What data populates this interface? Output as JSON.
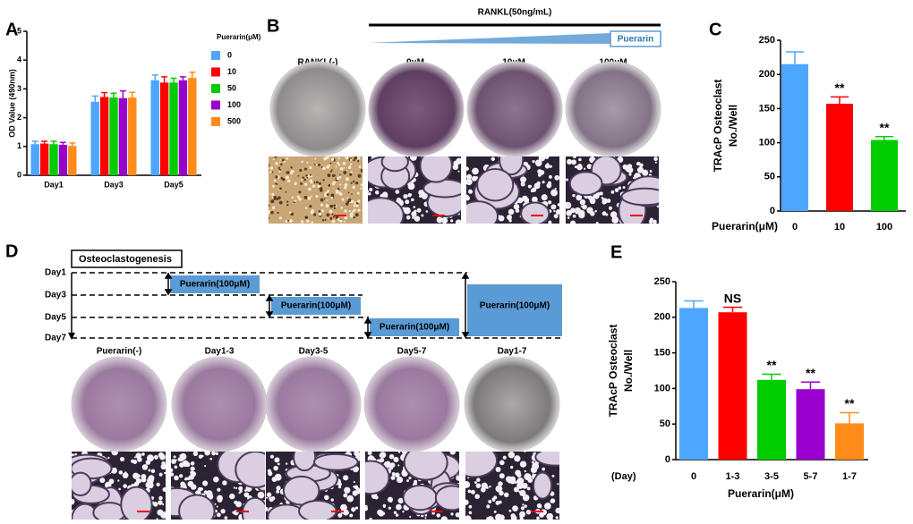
{
  "chart_data": [
    {
      "type": "bar",
      "label": "A",
      "ylabel": "OD Value (490nm)",
      "categories": [
        "Day1",
        "Day3",
        "Day5"
      ],
      "legend_title": "Puerarin(μM)",
      "series": [
        {
          "name": "0",
          "color": "#4da6ff",
          "values": [
            1.08,
            2.55,
            3.3
          ],
          "errors": [
            0.1,
            0.2,
            0.18
          ]
        },
        {
          "name": "10",
          "color": "#ff0000",
          "values": [
            1.1,
            2.72,
            3.22
          ],
          "errors": [
            0.08,
            0.15,
            0.2
          ]
        },
        {
          "name": "50",
          "color": "#00cc00",
          "values": [
            1.08,
            2.7,
            3.22
          ],
          "errors": [
            0.1,
            0.15,
            0.15
          ]
        },
        {
          "name": "100",
          "color": "#9900cc",
          "values": [
            1.06,
            2.68,
            3.3
          ],
          "errors": [
            0.08,
            0.25,
            0.12
          ]
        },
        {
          "name": "500",
          "color": "#ff8c1a",
          "values": [
            1.02,
            2.7,
            3.38
          ],
          "errors": [
            0.1,
            0.18,
            0.2
          ]
        }
      ],
      "ylim": [
        0,
        5
      ],
      "yticks": [
        0,
        1,
        2,
        3,
        4,
        5
      ]
    },
    {
      "type": "bar",
      "label": "C",
      "ylabel": [
        "TRAcP Osteoclast",
        "No./Well"
      ],
      "xlabel": "Puerarin(μM)",
      "categories": [
        "0",
        "10",
        "100"
      ],
      "values": [
        215,
        157,
        104
      ],
      "errors": [
        18,
        10,
        5
      ],
      "colors": [
        "#4da6ff",
        "#ff0000",
        "#00cc00"
      ],
      "annotations": [
        null,
        "**",
        "**"
      ],
      "ylim": [
        0,
        250
      ],
      "yticks": [
        0,
        50,
        100,
        150,
        200,
        250
      ]
    },
    {
      "type": "bar",
      "label": "E",
      "ylabel": [
        "TRAcP Osteoclast",
        "No./Well"
      ],
      "xlabel": "Puerarin(μM)",
      "category_axis_label": "(Day)",
      "categories": [
        "0",
        "1-3",
        "3-5",
        "5-7",
        "1-7"
      ],
      "values": [
        213,
        207,
        112,
        99,
        51
      ],
      "errors": [
        10,
        7,
        8,
        10,
        15
      ],
      "colors": [
        "#4da6ff",
        "#ff0000",
        "#00cc00",
        "#9900cc",
        "#ff8c1a"
      ],
      "annotations": [
        null,
        "NS",
        "**",
        "**",
        "**"
      ],
      "ylim": [
        0,
        250
      ],
      "yticks": [
        0,
        50,
        100,
        150,
        200,
        250
      ]
    }
  ],
  "panels": {
    "b": {
      "label": "B",
      "control": "RANKL(-)",
      "treatment": "RANKL(50ng/mL)",
      "drug": "Puerarin",
      "doses": [
        "0μM",
        "10μM",
        "100μM"
      ]
    },
    "d": {
      "label": "D",
      "title": "Osteoclastogenesis",
      "days": [
        "Day1",
        "Day3",
        "Day5",
        "Day7"
      ],
      "treatment_boxes": [
        "Puerarin(100μM)",
        "Puerarin(100μM)",
        "Puerarin(100μM)",
        "Puerarin(100μM)"
      ],
      "groups": [
        "Puerarin(-)",
        "Day1-3",
        "Day3-5",
        "Day5-7",
        "Day1-7"
      ]
    }
  }
}
